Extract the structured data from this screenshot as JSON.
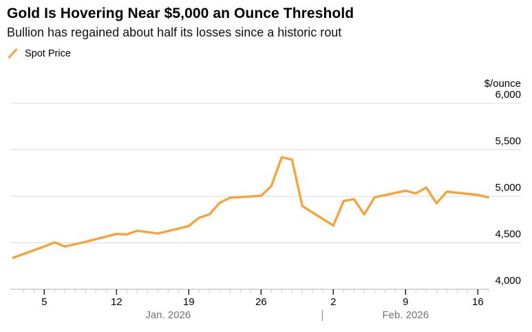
{
  "header": {
    "title": "Gold Is Hovering Near $5,000 an Ounce Threshold",
    "subtitle": "Bullion has regained about half its losses since a historic rout"
  },
  "legend": {
    "items": [
      {
        "label": "Spot Price",
        "marker": "slash-line-swatch",
        "color": "#F7A33C"
      }
    ]
  },
  "colors": {
    "line": "#F7A33C",
    "text": "#000000",
    "muted_text": "#737373",
    "gridline": "#D8D8D8",
    "axis_line": "#BEBEBE",
    "tick_minor": "#C8C8C8",
    "tick_major": "#222222",
    "background": "#FFFFFF"
  },
  "chart_data": {
    "type": "line",
    "title": "Gold Is Hovering Near $5,000 an Ounce Threshold",
    "subtitle": "Bullion has regained about half its losses since a historic rout",
    "unit_label": "$/ounce",
    "xlabel": "",
    "ylabel": "$/ounce",
    "ylim": [
      4000,
      6000
    ],
    "grid": "horizontal",
    "legend_position": "top-left",
    "yticks": [
      {
        "value": 6000,
        "label": "6,000"
      },
      {
        "value": 5500,
        "label": "5,500"
      },
      {
        "value": 5000,
        "label": "5,000"
      },
      {
        "value": 4500,
        "label": "4,500"
      },
      {
        "value": 4000,
        "label": "4,000"
      }
    ],
    "xticks": [
      {
        "date": "Jan 5",
        "label": "5"
      },
      {
        "date": "Jan 12",
        "label": "12"
      },
      {
        "date": "Jan 19",
        "label": "19"
      },
      {
        "date": "Jan 26",
        "label": "26"
      },
      {
        "date": "Feb 2",
        "label": "2"
      },
      {
        "date": "Feb 9",
        "label": "9"
      },
      {
        "date": "Feb 16",
        "label": "16"
      }
    ],
    "month_spans": [
      {
        "label": "Jan. 2026",
        "from": "Jan 2",
        "to": "Feb 1"
      },
      {
        "label": "Feb. 2026",
        "from": "Feb 1",
        "to": "Feb 17"
      }
    ],
    "month_divider_date": "Feb 1",
    "series": [
      {
        "name": "Spot Price",
        "color": "#F7A33C",
        "points": [
          {
            "date": "Jan 2",
            "value": 4340
          },
          {
            "date": "Jan 5",
            "value": 4460
          },
          {
            "date": "Jan 6",
            "value": 4505
          },
          {
            "date": "Jan 7",
            "value": 4460
          },
          {
            "date": "Jan 8",
            "value": 4485
          },
          {
            "date": "Jan 9",
            "value": 4510
          },
          {
            "date": "Jan 12",
            "value": 4595
          },
          {
            "date": "Jan 13",
            "value": 4590
          },
          {
            "date": "Jan 14",
            "value": 4630
          },
          {
            "date": "Jan 15",
            "value": 4615
          },
          {
            "date": "Jan 16",
            "value": 4600
          },
          {
            "date": "Jan 19",
            "value": 4680
          },
          {
            "date": "Jan 20",
            "value": 4770
          },
          {
            "date": "Jan 21",
            "value": 4805
          },
          {
            "date": "Jan 22",
            "value": 4930
          },
          {
            "date": "Jan 23",
            "value": 4985
          },
          {
            "date": "Jan 26",
            "value": 5005
          },
          {
            "date": "Jan 27",
            "value": 5110
          },
          {
            "date": "Jan 28",
            "value": 5420
          },
          {
            "date": "Jan 29",
            "value": 5395
          },
          {
            "date": "Jan 30",
            "value": 4895
          },
          {
            "date": "Feb 2",
            "value": 4685
          },
          {
            "date": "Feb 3",
            "value": 4950
          },
          {
            "date": "Feb 4",
            "value": 4970
          },
          {
            "date": "Feb 5",
            "value": 4805
          },
          {
            "date": "Feb 6",
            "value": 4990
          },
          {
            "date": "Feb 9",
            "value": 5060
          },
          {
            "date": "Feb 10",
            "value": 5030
          },
          {
            "date": "Feb 11",
            "value": 5095
          },
          {
            "date": "Feb 12",
            "value": 4925
          },
          {
            "date": "Feb 13",
            "value": 5050
          },
          {
            "date": "Feb 16",
            "value": 5015
          },
          {
            "date": "Feb 17",
            "value": 4990
          }
        ]
      }
    ]
  }
}
